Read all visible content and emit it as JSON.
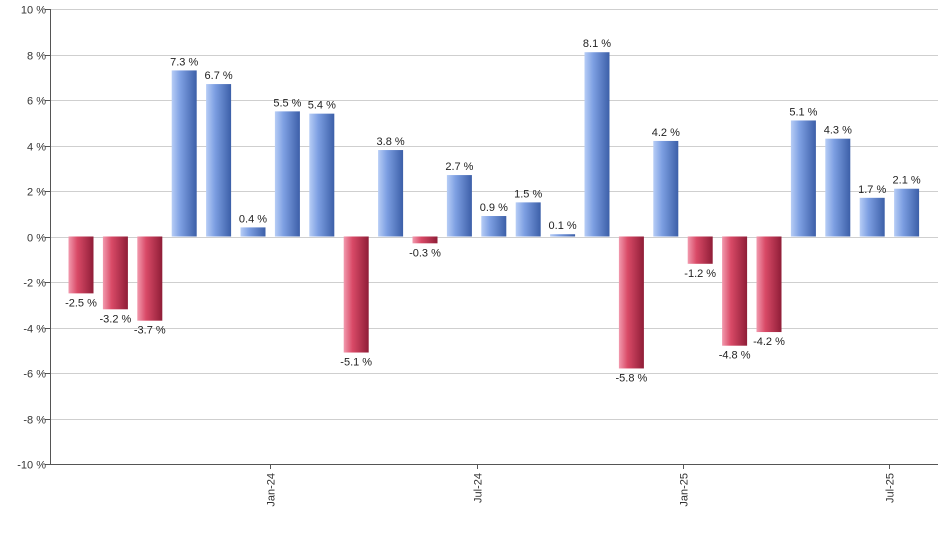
{
  "chart_data": {
    "type": "bar",
    "title": "",
    "xlabel": "",
    "ylabel": "",
    "ylim": [
      -10,
      10
    ],
    "yticks": [
      -10,
      -8,
      -6,
      -4,
      -2,
      0,
      2,
      4,
      6,
      8,
      10
    ],
    "ytick_suffix": " %",
    "grid": true,
    "values": [
      -2.5,
      -3.2,
      -3.7,
      7.3,
      6.7,
      0.4,
      5.5,
      5.4,
      -5.1,
      3.8,
      -0.3,
      2.7,
      0.9,
      1.5,
      0.1,
      8.1,
      -5.8,
      4.2,
      -1.2,
      -4.8,
      -4.2,
      5.1,
      4.3,
      1.7,
      2.1
    ],
    "labels": [
      "-2.5 %",
      "-3.2 %",
      "-3.7 %",
      "7.3 %",
      "6.7 %",
      "0.4 %",
      "5.5 %",
      "5.4 %",
      "-5.1 %",
      "3.8 %",
      "-0.3 %",
      "2.7 %",
      "0.9 %",
      "1.5 %",
      "0.1 %",
      "8.1 %",
      "-5.8 %",
      "4.2 %",
      "-1.2 %",
      "-4.8 %",
      "-4.2 %",
      "5.1 %",
      "4.3 %",
      "1.7 %",
      "2.1 %"
    ],
    "x_ticks": [
      {
        "label": "Jan-24",
        "after_index": 5
      },
      {
        "label": "Jul-24",
        "after_index": 11
      },
      {
        "label": "Jan-25",
        "after_index": 17
      },
      {
        "label": "Jul-25",
        "after_index": 23
      }
    ],
    "colors": {
      "positive_light": "#b7cdf6",
      "positive_mid": "#7d9fe2",
      "positive_dark": "#3c5fa8",
      "negative_light": "#f29aae",
      "negative_mid": "#d94a67",
      "negative_dark": "#8f1d37"
    }
  }
}
